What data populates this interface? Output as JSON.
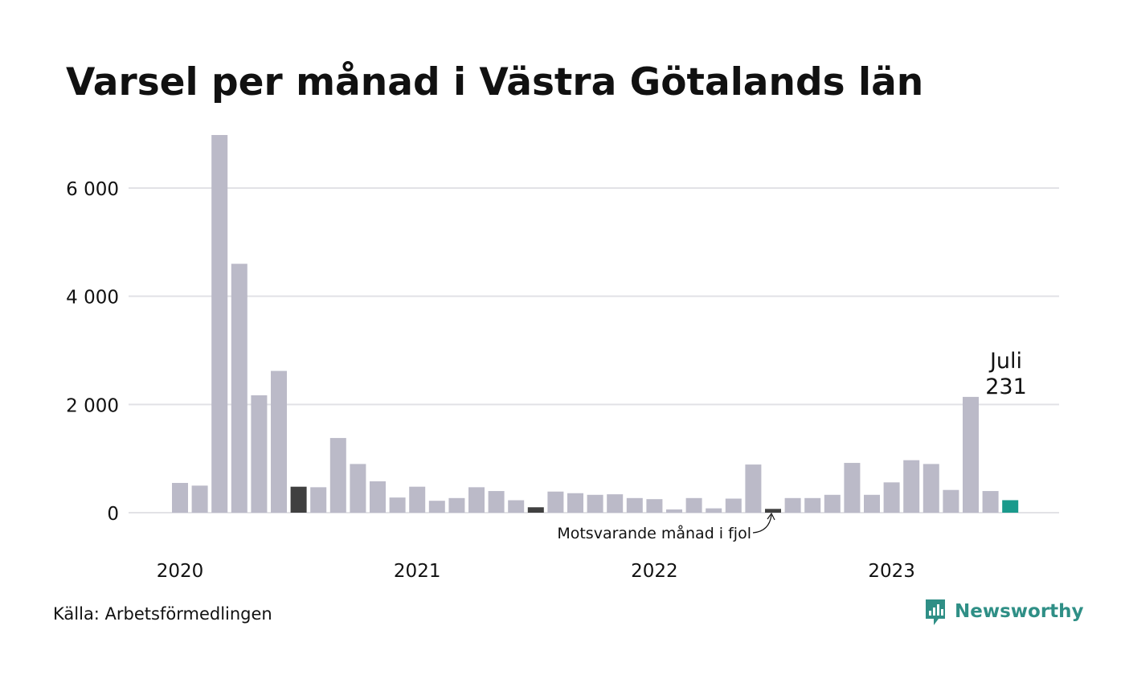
{
  "title": "Varsel per månad i Västra Götalands län",
  "source": "Källa: Arbetsförmedlingen",
  "brand": "Newsworthy",
  "annotation_label": "Motsvarande månad i fjol",
  "callout": {
    "month": "Juli",
    "value": "231"
  },
  "colors": {
    "bar": "#bbbac8",
    "highlight_same_month": "#404040",
    "current": "#1a9a8c",
    "grid": "#e2e2e6",
    "brand": "#2f8f86"
  },
  "chart_data": {
    "type": "bar",
    "title": "Varsel per månad i Västra Götalands län",
    "xlabel": "",
    "ylabel": "",
    "ylim": [
      0,
      7000
    ],
    "yticks": [
      0,
      2000,
      4000,
      6000
    ],
    "ytick_labels": [
      "0",
      "2 000",
      "4 000",
      "6 000"
    ],
    "x_labels": [
      {
        "label": "2020",
        "index": 0
      },
      {
        "label": "2021",
        "index": 12
      },
      {
        "label": "2022",
        "index": 24
      },
      {
        "label": "2023",
        "index": 36
      }
    ],
    "categories": [
      "2020-01",
      "2020-02",
      "2020-03",
      "2020-04",
      "2020-05",
      "2020-06",
      "2020-07",
      "2020-08",
      "2020-09",
      "2020-10",
      "2020-11",
      "2020-12",
      "2021-01",
      "2021-02",
      "2021-03",
      "2021-04",
      "2021-05",
      "2021-06",
      "2021-07",
      "2021-08",
      "2021-09",
      "2021-10",
      "2021-11",
      "2021-12",
      "2022-01",
      "2022-02",
      "2022-03",
      "2022-04",
      "2022-05",
      "2022-06",
      "2022-07",
      "2022-08",
      "2022-09",
      "2022-10",
      "2022-11",
      "2022-12",
      "2023-01",
      "2023-02",
      "2023-03",
      "2023-04",
      "2023-05",
      "2023-06",
      "2023-07"
    ],
    "values": [
      550,
      500,
      6980,
      4600,
      2170,
      2620,
      480,
      470,
      1380,
      900,
      580,
      280,
      480,
      220,
      270,
      470,
      400,
      230,
      100,
      390,
      360,
      330,
      340,
      270,
      250,
      60,
      270,
      80,
      260,
      890,
      70,
      270,
      270,
      330,
      920,
      330,
      560,
      970,
      900,
      420,
      2140,
      400,
      231
    ],
    "highlight_indices": [
      6,
      18,
      30
    ],
    "current_index": 42
  }
}
